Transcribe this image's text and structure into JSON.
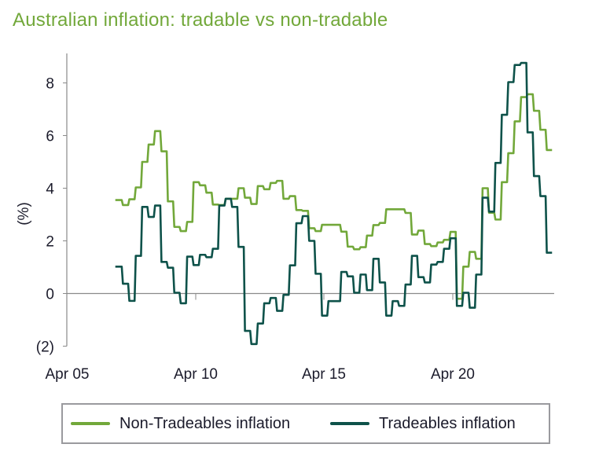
{
  "chart_data": {
    "type": "line",
    "title": "Australian inflation: tradable vs non-tradable",
    "xlabel": "",
    "ylabel": "(%)",
    "ylim": [
      -2,
      9
    ],
    "y_ticks": [
      8,
      6,
      4,
      2,
      0,
      -2
    ],
    "y_tick_labels": [
      "8",
      "6",
      "4",
      "2",
      "0",
      "(2)"
    ],
    "x_tick_labels": [
      "Apr 05",
      "Apr 10",
      "Apr 15",
      "Apr 20"
    ],
    "grid": false,
    "legend": "bottom",
    "x": [
      "Mar 2007",
      "Jun 2007",
      "Sep 2007",
      "Dec 2007",
      "Mar 2008",
      "Jun 2008",
      "Sep 2008",
      "Dec 2008",
      "Mar 2009",
      "Jun 2009",
      "Sep 2009",
      "Dec 2009",
      "Mar 2010",
      "Jun 2010",
      "Sep 2010",
      "Dec 2010",
      "Mar 2011",
      "Jun 2011",
      "Sep 2011",
      "Dec 2011",
      "Mar 2012",
      "Jun 2012",
      "Sep 2012",
      "Dec 2012",
      "Mar 2013",
      "Jun 2013",
      "Sep 2013",
      "Dec 2013",
      "Mar 2014",
      "Jun 2014",
      "Sep 2014",
      "Dec 2014",
      "Mar 2015",
      "Jun 2015",
      "Sep 2015",
      "Dec 2015",
      "Mar 2016",
      "Jun 2016",
      "Sep 2016",
      "Dec 2016",
      "Mar 2017",
      "Jun 2017",
      "Sep 2017",
      "Dec 2017",
      "Mar 2018",
      "Jun 2018",
      "Sep 2018",
      "Dec 2018",
      "Mar 2019",
      "Jun 2019",
      "Sep 2019",
      "Dec 2019",
      "Mar 2020",
      "Jun 2020",
      "Sep 2020",
      "Dec 2020",
      "Mar 2021",
      "Jun 2021",
      "Sep 2021",
      "Dec 2021",
      "Mar 2022",
      "Jun 2022",
      "Sep 2022",
      "Dec 2022",
      "Mar 2023",
      "Jun 2023",
      "Sep 2023",
      "Dec 2023"
    ],
    "series": [
      {
        "name": "Non-Tradeables inflation",
        "color": "#72a83a",
        "values": [
          3.55,
          3.36,
          3.58,
          4.03,
          5.0,
          5.66,
          6.17,
          5.4,
          3.5,
          2.53,
          2.37,
          2.72,
          4.23,
          4.11,
          3.83,
          3.38,
          3.36,
          3.6,
          3.6,
          4.0,
          3.64,
          3.4,
          4.08,
          3.96,
          4.2,
          4.28,
          3.6,
          3.7,
          3.17,
          3.14,
          2.48,
          2.37,
          2.61,
          2.61,
          2.61,
          2.35,
          1.78,
          1.68,
          1.76,
          2.2,
          2.6,
          2.68,
          3.2,
          3.2,
          3.2,
          3.06,
          2.24,
          2.39,
          1.88,
          1.8,
          1.94,
          2.04,
          2.34,
          -0.2,
          1.02,
          1.58,
          1.32,
          4.0,
          3.07,
          2.81,
          4.23,
          5.33,
          6.54,
          7.46,
          7.57,
          6.94,
          6.22,
          5.45
        ]
      },
      {
        "name": "Tradeables inflation",
        "color": "#0e524a",
        "values": [
          1.02,
          0.37,
          -0.28,
          1.43,
          3.29,
          2.91,
          3.34,
          1.2,
          0.98,
          0.03,
          -0.37,
          1.4,
          1.08,
          1.47,
          1.38,
          1.7,
          3.34,
          3.6,
          3.29,
          1.77,
          -1.42,
          -1.92,
          -1.14,
          -0.37,
          -0.17,
          -0.66,
          -0.05,
          1.07,
          2.67,
          2.94,
          2.0,
          0.75,
          -0.84,
          -0.29,
          -0.29,
          0.82,
          0.65,
          0.03,
          0.72,
          0.13,
          1.32,
          0.42,
          -0.84,
          -0.29,
          -0.47,
          0.34,
          1.43,
          0.62,
          0.42,
          1.1,
          1.2,
          1.7,
          2.1,
          -0.47,
          0.03,
          -0.54,
          0.72,
          3.64,
          3.11,
          4.96,
          6.79,
          8.03,
          8.68,
          8.76,
          6.12,
          4.46,
          3.7,
          1.55
        ]
      }
    ]
  }
}
